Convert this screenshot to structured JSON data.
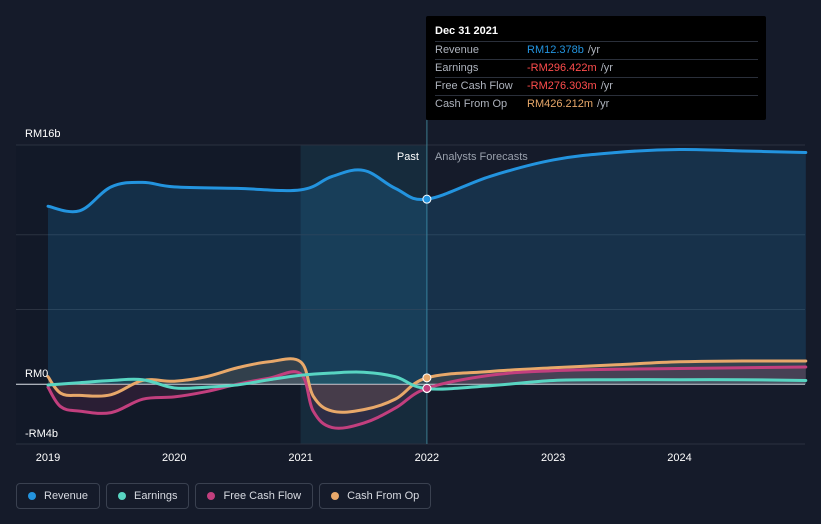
{
  "colors": {
    "background": "#151b2a",
    "revenue": "#2394df",
    "earnings": "#58d5c2",
    "free_cash_flow": "#c23f7e",
    "cash_from_op": "#e8a86a",
    "grid": "#2b3240",
    "past_highlight": "#1a3a4d"
  },
  "tooltip": {
    "date": "Dec 31 2021",
    "rows": [
      {
        "label": "Revenue",
        "value": "RM12.378b",
        "unit": "/yr",
        "color": "#2394df"
      },
      {
        "label": "Earnings",
        "value": "-RM296.422m",
        "unit": "/yr",
        "color": "#ff4d4d"
      },
      {
        "label": "Free Cash Flow",
        "value": "-RM276.303m",
        "unit": "/yr",
        "color": "#ff4d4d"
      },
      {
        "label": "Cash From Op",
        "value": "RM426.212m",
        "unit": "/yr",
        "color": "#e8a86a"
      }
    ]
  },
  "legend": [
    {
      "label": "Revenue",
      "color": "#2394df",
      "icon": "revenue-dot-icon"
    },
    {
      "label": "Earnings",
      "color": "#58d5c2",
      "icon": "earnings-dot-icon"
    },
    {
      "label": "Free Cash Flow",
      "color": "#c23f7e",
      "icon": "free-cash-flow-dot-icon"
    },
    {
      "label": "Cash From Op",
      "color": "#e8a86a",
      "icon": "cash-from-op-dot-icon"
    }
  ],
  "chart_data": {
    "type": "area",
    "title": "",
    "xlabel": "",
    "ylabel": "",
    "ylim": [
      -4,
      16
    ],
    "xlim": [
      2019,
      2025
    ],
    "y_tick_labels": [
      {
        "value": 16,
        "label": "RM16b"
      },
      {
        "value": 0,
        "label": "RM0"
      },
      {
        "value": -4,
        "label": "-RM4b"
      }
    ],
    "x_tick_labels": [
      {
        "value": 2019,
        "label": "2019"
      },
      {
        "value": 2020,
        "label": "2020"
      },
      {
        "value": 2021,
        "label": "2021"
      },
      {
        "value": 2022,
        "label": "2022"
      },
      {
        "value": 2023,
        "label": "2023"
      },
      {
        "value": 2024,
        "label": "2024"
      }
    ],
    "divider_x": 2022,
    "highlight_start_x": 2021,
    "annotations": {
      "past": "Past",
      "forecast": "Analysts Forecasts"
    },
    "series": [
      {
        "name": "Revenue",
        "key": "revenue",
        "x": [
          2019.0,
          2019.25,
          2019.5,
          2019.75,
          2020.0,
          2020.5,
          2021.0,
          2021.25,
          2021.5,
          2021.75,
          2022.0,
          2022.5,
          2023.0,
          2023.5,
          2024.0,
          2024.5,
          2025.0
        ],
        "y": [
          11.9,
          11.6,
          13.2,
          13.5,
          13.2,
          13.1,
          13.0,
          13.9,
          14.3,
          13.1,
          12.378,
          13.9,
          15.0,
          15.5,
          15.7,
          15.6,
          15.5
        ]
      },
      {
        "name": "Earnings",
        "key": "earnings",
        "x": [
          2019.0,
          2019.25,
          2019.5,
          2019.75,
          2020.0,
          2020.25,
          2020.5,
          2020.75,
          2021.0,
          2021.25,
          2021.5,
          2021.75,
          2022.0,
          2022.5,
          2023.0,
          2023.5,
          2024.0,
          2024.5,
          2025.0
        ],
        "y": [
          -0.05,
          0.1,
          0.25,
          0.3,
          -0.25,
          -0.2,
          -0.05,
          0.3,
          0.6,
          0.75,
          0.8,
          0.5,
          -0.296,
          -0.1,
          0.25,
          0.3,
          0.3,
          0.3,
          0.25
        ]
      },
      {
        "name": "Free Cash Flow",
        "key": "free_cash_flow",
        "x": [
          2019.0,
          2019.1,
          2019.25,
          2019.5,
          2019.75,
          2020.0,
          2020.25,
          2020.5,
          2020.75,
          2021.0,
          2021.1,
          2021.25,
          2021.5,
          2021.75,
          2022.0,
          2022.5,
          2023.0,
          2023.5,
          2024.0,
          2024.5,
          2025.0
        ],
        "y": [
          -0.2,
          -1.5,
          -1.8,
          -1.9,
          -1.0,
          -0.85,
          -0.5,
          0.0,
          0.4,
          0.7,
          -1.8,
          -2.9,
          -2.6,
          -1.6,
          -0.276,
          0.6,
          0.9,
          1.0,
          1.05,
          1.1,
          1.15
        ]
      },
      {
        "name": "Cash From Op",
        "key": "cash_from_op",
        "x": [
          2019.0,
          2019.1,
          2019.25,
          2019.5,
          2019.75,
          2020.0,
          2020.25,
          2020.5,
          2020.75,
          2021.0,
          2021.1,
          2021.25,
          2021.5,
          2021.75,
          2022.0,
          2022.5,
          2023.0,
          2023.5,
          2024.0,
          2024.5,
          2025.0
        ],
        "y": [
          0.5,
          -0.6,
          -0.75,
          -0.7,
          0.25,
          0.2,
          0.5,
          1.1,
          1.5,
          1.5,
          -0.8,
          -1.8,
          -1.7,
          -1.0,
          0.426,
          0.85,
          1.1,
          1.3,
          1.5,
          1.55,
          1.55
        ]
      }
    ]
  }
}
